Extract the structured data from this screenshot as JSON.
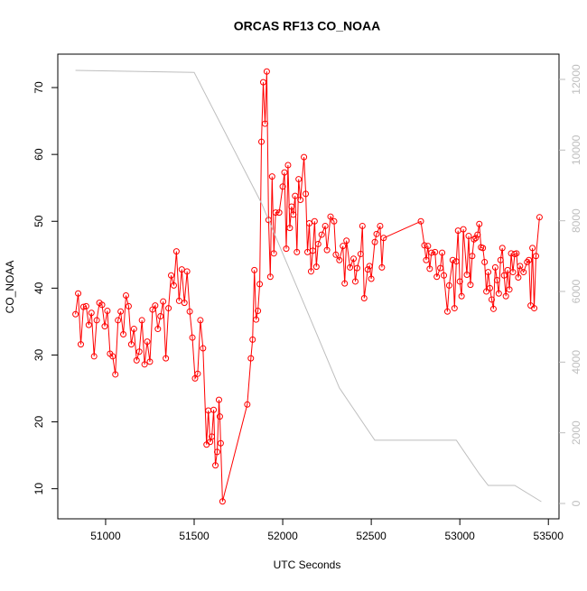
{
  "chart_data": {
    "type": "line",
    "title": "ORCAS RF13 CO_NOAA",
    "xlabel": "UTC Seconds",
    "ylabel": "CO_NOAA",
    "xlim": [
      50730,
      53560
    ],
    "xticks": [
      51000,
      51500,
      52000,
      52500,
      53000,
      53500
    ],
    "ylim": [
      5.5,
      75.0
    ],
    "yticks": [
      10,
      20,
      30,
      40,
      50,
      60,
      70
    ],
    "y2lim": [
      -434,
      12715
    ],
    "y2ticks": [
      0,
      2000,
      4000,
      6000,
      8000,
      10000,
      12000
    ],
    "series": [
      {
        "color": "#ff0000",
        "markers": true,
        "x": [
          50830,
          50845,
          50860,
          50875,
          50890,
          50905,
          50920,
          50935,
          50950,
          50965,
          50980,
          50995,
          51010,
          51025,
          51040,
          51055,
          51070,
          51085,
          51100,
          51115,
          51130,
          51145,
          51160,
          51175,
          51190,
          51205,
          51220,
          51235,
          51250,
          51265,
          51280,
          51295,
          51310,
          51325,
          51340,
          51355,
          51370,
          51385,
          51400,
          51415,
          51430,
          51445,
          51460,
          51475,
          51490,
          51505,
          51520,
          51535,
          51550,
          51570,
          51580,
          51590,
          51600,
          51610,
          51620,
          51630,
          51640,
          51645,
          51650,
          51660,
          51800,
          51820,
          51830,
          51840,
          51850,
          51860,
          51870,
          51880,
          51890,
          51900,
          51910,
          51920,
          51930,
          51940,
          51950,
          51960,
          51980,
          52000,
          52010,
          52020,
          52030,
          52040,
          52050,
          52060,
          52070,
          52080,
          52090,
          52100,
          52120,
          52130,
          52140,
          52150,
          52160,
          52170,
          52180,
          52190,
          52200,
          52220,
          52240,
          52250,
          52270,
          52290,
          52300,
          52320,
          52340,
          52350,
          52360,
          52380,
          52400,
          52410,
          52420,
          52440,
          52450,
          52460,
          52480,
          52490,
          52500,
          52520,
          52530,
          52550,
          52560,
          52570,
          52780,
          52800,
          52810,
          52820,
          52830,
          52840,
          52860,
          52870,
          52890,
          52900,
          52910,
          52930,
          52940,
          52960,
          52970,
          52980,
          52990,
          53000,
          53010,
          53020,
          53040,
          53050,
          53060,
          53070,
          53080,
          53090,
          53100,
          53110,
          53120,
          53130,
          53140,
          53150,
          53160,
          53170,
          53180,
          53190,
          53200,
          53210,
          53220,
          53230,
          53240,
          53250,
          53260,
          53270,
          53280,
          53290,
          53300,
          53310,
          53320,
          53330,
          53340,
          53360,
          53380,
          53390,
          53400,
          53410,
          53420,
          53430,
          53450
        ],
        "values": [
          36.1,
          39.2,
          31.6,
          37.2,
          37.3,
          34.5,
          36.3,
          29.8,
          35.2,
          37.8,
          37.5,
          34.3,
          36.6,
          30.2,
          29.8,
          27.1,
          35.2,
          36.5,
          33.1,
          38.9,
          37.3,
          31.6,
          33.9,
          29.2,
          30.5,
          35.2,
          28.6,
          32.0,
          29.0,
          36.8,
          37.4,
          33.9,
          35.8,
          38.0,
          29.5,
          37.0,
          41.9,
          40.4,
          45.5,
          38.1,
          42.8,
          37.8,
          42.5,
          36.5,
          32.6,
          26.5,
          27.2,
          35.2,
          31.0,
          16.6,
          21.7,
          17.0,
          17.8,
          21.8,
          13.5,
          15.5,
          23.3,
          20.8,
          16.8,
          8.1,
          22.6,
          29.5,
          32.3,
          42.7,
          35.3,
          36.6,
          40.6,
          61.9,
          70.8,
          64.6,
          72.4,
          50.2,
          41.7,
          56.7,
          45.2,
          51.3,
          51.3,
          55.2,
          57.3,
          45.9,
          58.4,
          49.0,
          52.2,
          51.0,
          53.8,
          45.4,
          56.3,
          53.2,
          59.6,
          54.1,
          45.4,
          49.7,
          42.5,
          45.6,
          50.0,
          43.2,
          46.6,
          48.0,
          49.3,
          45.7,
          50.7,
          50.0,
          45.0,
          44.2,
          46.3,
          40.7,
          47.1,
          43.1,
          44.4,
          41.0,
          43.0,
          45.1,
          49.3,
          38.5,
          42.8,
          43.3,
          41.4,
          46.9,
          48.1,
          49.3,
          43.1,
          47.5,
          50.0,
          46.4,
          44.2,
          46.3,
          42.9,
          45.3,
          45.4,
          41.7,
          43.0,
          45.3,
          41.9,
          36.5,
          40.4,
          44.2,
          37.0,
          44.0,
          48.6,
          41.0,
          38.8,
          48.8,
          42.0,
          47.8,
          40.5,
          44.8,
          47.3,
          47.5,
          48.0,
          49.6,
          46.1,
          46.0,
          43.9,
          39.5,
          42.4,
          40.0,
          38.3,
          36.9,
          43.1,
          41.2,
          39.2,
          44.2,
          46.0,
          41.9,
          38.8,
          42.7,
          39.8,
          45.2,
          42.4,
          45.1,
          45.2,
          41.6,
          43.3,
          42.4,
          43.9,
          44.2,
          37.4,
          46.0,
          37.0,
          44.8,
          50.6
        ]
      },
      {
        "color": "#bebebe",
        "axis": "y2",
        "markers": false,
        "x": [
          50830,
          51500,
          51880,
          52160,
          52320,
          52520,
          52980,
          53110,
          53160,
          53310,
          53460
        ],
        "values": [
          12255,
          12200,
          8500,
          5180,
          3270,
          1790,
          1790,
          840,
          510,
          510,
          50
        ]
      }
    ]
  }
}
